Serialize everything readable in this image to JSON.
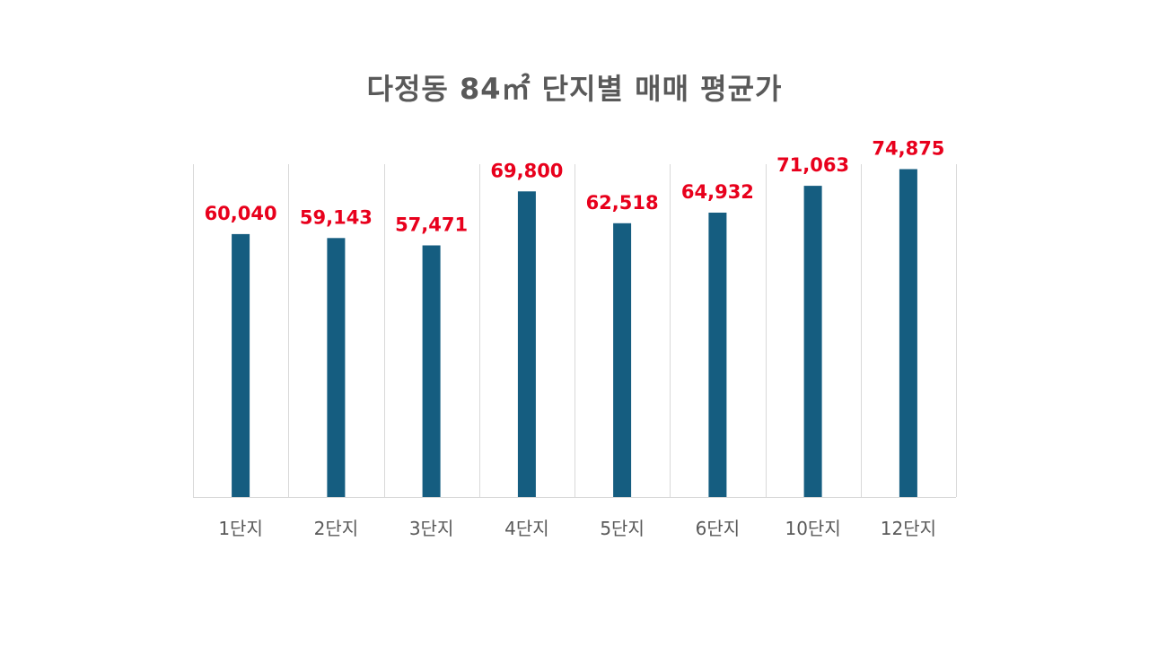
{
  "chart_data": {
    "type": "bar",
    "title": "다정동 84㎡ 단지별 매매 평균가",
    "categories": [
      "1단지",
      "2단지",
      "3단지",
      "4단지",
      "5단지",
      "6단지",
      "10단지",
      "12단지"
    ],
    "values": [
      60040,
      59143,
      57471,
      69800,
      62518,
      64932,
      71063,
      74875
    ],
    "value_labels": [
      "60,040",
      "59,143",
      "57,471",
      "69,800",
      "62,518",
      "64,932",
      "71,063",
      "74,875"
    ],
    "xlabel": "",
    "ylabel": "",
    "ylim": [
      0,
      75000
    ],
    "grid": "vertical category separators",
    "legend": "none"
  },
  "colors": {
    "bar": "#155D80",
    "data_label": "#E8001C",
    "title": "#595959",
    "tick_label": "#595959",
    "grid": "#D9D9D9"
  }
}
